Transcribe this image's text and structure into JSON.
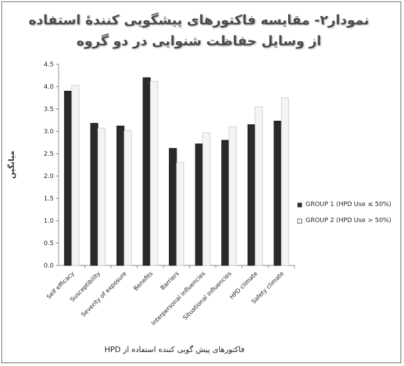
{
  "chart_data": {
    "type": "bar",
    "title": "نمودار۲- مقایسه فاکتورهای پیشگویی کنندهٔ استفاده از وسایل حفاظت شنوایی در دو گروه",
    "xlabel": "فاکتورهای پیش گویی کننده استفاده از HPD",
    "ylabel": "میانگین",
    "ylim": [
      0,
      4.5
    ],
    "yticks": [
      "0.0",
      "0.5",
      "1.0",
      "1.5",
      "2.0",
      "2.5",
      "3.0",
      "3.5",
      "4.0",
      "4.5"
    ],
    "categories": [
      "Self efficacy",
      "Susceptibility",
      "Severity of exposure",
      "Benefits",
      "Barriers",
      "Interpersonal influencies",
      "Situational influencies",
      "HPD climate",
      "Safety climate"
    ],
    "series": [
      {
        "name": "GROUP 1 (HPD Use ≤ 50%)",
        "color": "#2a2a2a",
        "values": [
          3.9,
          3.18,
          3.12,
          4.2,
          2.62,
          2.72,
          2.8,
          3.15,
          3.23
        ]
      },
      {
        "name": "GROUP 2 (HPD Use > 50%)",
        "color": "#f4f4f4",
        "values": [
          4.03,
          3.07,
          3.02,
          4.12,
          2.3,
          2.97,
          3.1,
          3.55,
          3.75
        ]
      }
    ],
    "grid": false,
    "legend_position": "right"
  }
}
